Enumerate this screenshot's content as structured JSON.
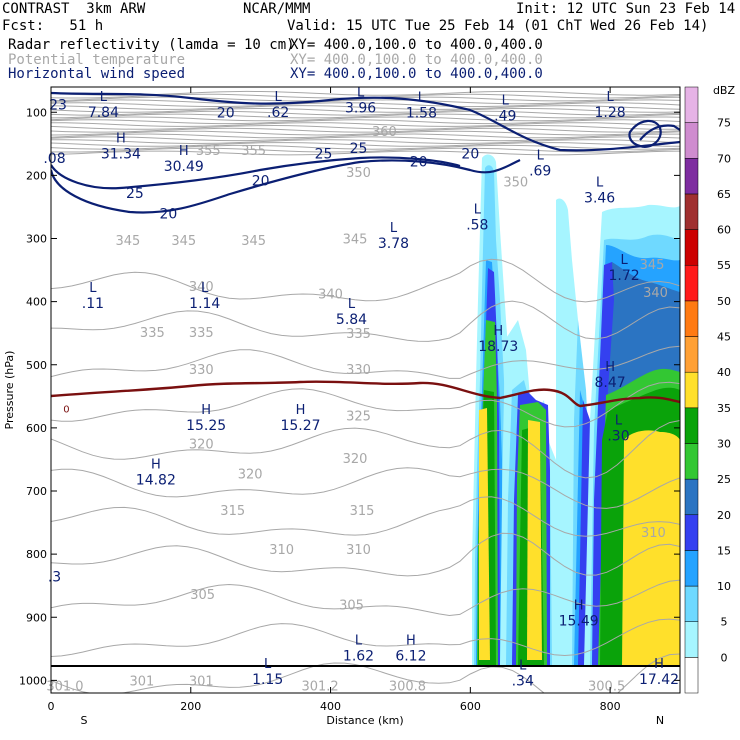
{
  "header": {
    "l1": "CONTRAST  3km ARW",
    "c1": "NCAR/MMM",
    "r1": "Init: 12 UTC Sun 23 Feb 14",
    "l2": "Fcst:   51 h",
    "r2": "Valid: 15 UTC Tue 25 Feb 14 (01 ChT Wed 26 Feb 14)",
    "f1_name": "Radar reflectivity (lamda = 10 cm)",
    "f1_xy": "XY= 400.0,100.0 to 400.0,400.0",
    "f2_name": "Potential temperature",
    "f2_xy": "XY= 400.0,100.0 to 400.0,400.0",
    "f3_name": "Horizontal wind speed",
    "f3_xy": "XY= 400.0,100.0 to 400.0,400.0"
  },
  "colors": {
    "theta": "#a8a8a8",
    "wind": "#0b1f73",
    "freezing": "#7a1010",
    "hl": "#0b1f73"
  },
  "chart_data": {
    "type": "cross-section",
    "xlabel": "Distance (km)",
    "ylabel": "Pressure (hPa)",
    "xlim": [
      0,
      900
    ],
    "ylim": [
      1020,
      60
    ],
    "x_ticks": [
      0,
      200,
      400,
      600,
      800
    ],
    "y_ticks": [
      100,
      200,
      300,
      400,
      500,
      600,
      700,
      800,
      900,
      1000
    ],
    "end_labels": {
      "left": "S",
      "right": "N"
    },
    "colorbar": {
      "unit": "dBZ",
      "levels": [
        0,
        5,
        10,
        15,
        20,
        25,
        30,
        35,
        40,
        45,
        50,
        55,
        60,
        65,
        70,
        75
      ],
      "colors": [
        "#ffffff",
        "#a6f5ff",
        "#6fd9ff",
        "#25a3ff",
        "#3440f0",
        "#2b74c2",
        "#33c733",
        "#0aa30a",
        "#ffe02b",
        "#ffa034",
        "#ff7a12",
        "#ff1a1a",
        "#cc0000",
        "#a03030",
        "#7e2da0",
        "#cf8ccf",
        "#e6b3e6"
      ]
    },
    "theta_labels": [
      {
        "x": 477,
        "p": 130,
        "t": "360"
      },
      {
        "x": 225,
        "p": 160,
        "t": "355"
      },
      {
        "x": 290,
        "p": 160,
        "t": "355"
      },
      {
        "x": 440,
        "p": 195,
        "t": "350"
      },
      {
        "x": 665,
        "p": 210,
        "t": "350"
      },
      {
        "x": 110,
        "p": 302,
        "t": "345"
      },
      {
        "x": 190,
        "p": 302,
        "t": "345"
      },
      {
        "x": 290,
        "p": 302,
        "t": "345"
      },
      {
        "x": 435,
        "p": 300,
        "t": "345"
      },
      {
        "x": 860,
        "p": 340,
        "t": "345"
      },
      {
        "x": 215,
        "p": 375,
        "t": "340"
      },
      {
        "x": 400,
        "p": 387,
        "t": "340"
      },
      {
        "x": 865,
        "p": 385,
        "t": "340"
      },
      {
        "x": 145,
        "p": 448,
        "t": "335"
      },
      {
        "x": 215,
        "p": 448,
        "t": "335"
      },
      {
        "x": 440,
        "p": 450,
        "t": "335"
      },
      {
        "x": 215,
        "p": 507,
        "t": "330"
      },
      {
        "x": 440,
        "p": 507,
        "t": "330"
      },
      {
        "x": 440,
        "p": 580,
        "t": "325"
      },
      {
        "x": 215,
        "p": 625,
        "t": "320"
      },
      {
        "x": 285,
        "p": 672,
        "t": "320"
      },
      {
        "x": 435,
        "p": 648,
        "t": "320"
      },
      {
        "x": 260,
        "p": 730,
        "t": "315"
      },
      {
        "x": 445,
        "p": 730,
        "t": "315"
      },
      {
        "x": 330,
        "p": 792,
        "t": "310"
      },
      {
        "x": 440,
        "p": 792,
        "t": "310"
      },
      {
        "x": 862,
        "p": 765,
        "t": "310"
      },
      {
        "x": 217,
        "p": 863,
        "t": "305"
      },
      {
        "x": 430,
        "p": 880,
        "t": "305"
      },
      {
        "x": 130,
        "p": 1000,
        "t": "301"
      },
      {
        "x": 215,
        "p": 1000,
        "t": "301"
      },
      {
        "x": 20,
        "p": 1008,
        "t": "301.0"
      },
      {
        "x": 385,
        "p": 1008,
        "t": "301.2"
      },
      {
        "x": 510,
        "p": 1008,
        "t": "300.8"
      },
      {
        "x": 795,
        "p": 1008,
        "t": "300.5"
      }
    ],
    "wind_labels": [
      {
        "x": 10,
        "p": 88,
        "t": "23"
      },
      {
        "x": 250,
        "p": 100,
        "t": "20"
      },
      {
        "x": 600,
        "p": 165,
        "t": "20"
      },
      {
        "x": 390,
        "p": 165,
        "t": "25"
      },
      {
        "x": 440,
        "p": 157,
        "t": "25"
      },
      {
        "x": 300,
        "p": 208,
        "t": "20"
      },
      {
        "x": 120,
        "p": 228,
        "t": "25"
      },
      {
        "x": 168,
        "p": 260,
        "t": "20"
      },
      {
        "x": 526,
        "p": 178,
        "t": "20"
      }
    ],
    "hl_marks": [
      {
        "x": 75,
        "p": 82,
        "s": "L",
        "v": "7.84"
      },
      {
        "x": 325,
        "p": 82,
        "s": "L",
        "v": ".62"
      },
      {
        "x": 443,
        "p": 75,
        "s": "L",
        "v": "3.96"
      },
      {
        "x": 530,
        "p": 83,
        "s": "L",
        "v": "1.58"
      },
      {
        "x": 650,
        "p": 88,
        "s": "L",
        "v": ".49"
      },
      {
        "x": 800,
        "p": 82,
        "s": "L",
        "v": "1.28"
      },
      {
        "x": 100,
        "p": 148,
        "s": "H",
        "v": "31.34"
      },
      {
        "x": 190,
        "p": 168,
        "s": "H",
        "v": "30.49"
      },
      {
        "x": 5,
        "p": 155,
        "s": "",
        "v": ".08"
      },
      {
        "x": 700,
        "p": 175,
        "s": "L",
        "v": ".69"
      },
      {
        "x": 785,
        "p": 218,
        "s": "L",
        "v": "3.46"
      },
      {
        "x": 610,
        "p": 260,
        "s": "L",
        "v": ".58"
      },
      {
        "x": 490,
        "p": 290,
        "s": "L",
        "v": "3.78"
      },
      {
        "x": 820,
        "p": 340,
        "s": "L",
        "v": "1.72"
      },
      {
        "x": 60,
        "p": 385,
        "s": "L",
        "v": ".11"
      },
      {
        "x": 220,
        "p": 385,
        "s": "L",
        "v": "1.14"
      },
      {
        "x": 430,
        "p": 410,
        "s": "L",
        "v": "5.84"
      },
      {
        "x": 640,
        "p": 453,
        "s": "H",
        "v": "18.73"
      },
      {
        "x": 800,
        "p": 510,
        "s": "H",
        "v": "8.47"
      },
      {
        "x": 222,
        "p": 578,
        "s": "H",
        "v": "15.25"
      },
      {
        "x": 357,
        "p": 578,
        "s": "H",
        "v": "15.27"
      },
      {
        "x": 812,
        "p": 595,
        "s": "L",
        "v": ".30"
      },
      {
        "x": 150,
        "p": 664,
        "s": "H",
        "v": "14.82"
      },
      {
        "x": 5,
        "p": 818,
        "s": "",
        "v": ".3"
      },
      {
        "x": 755,
        "p": 888,
        "s": "H",
        "v": "15.49"
      },
      {
        "x": 440,
        "p": 943,
        "s": "L",
        "v": "1.62"
      },
      {
        "x": 515,
        "p": 943,
        "s": "H",
        "v": "6.12"
      },
      {
        "x": 675,
        "p": 983,
        "s": "L",
        "v": ".34"
      },
      {
        "x": 310,
        "p": 980,
        "s": "L",
        "v": "1.15"
      },
      {
        "x": 870,
        "p": 980,
        "s": "H",
        "v": "17.42"
      }
    ],
    "freezing_label": {
      "x": 22,
      "p": 568,
      "t": "0"
    }
  }
}
